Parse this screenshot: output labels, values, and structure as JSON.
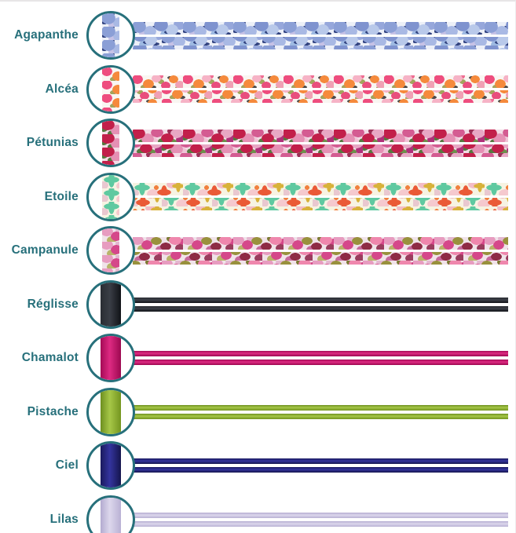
{
  "theme": {
    "accent": "#27707b",
    "page_bg": "#ffffff",
    "top_border": "#e7e5e6",
    "right_border": "#edecee"
  },
  "options": [
    {
      "name": "Agapanthe",
      "kind": "liberty",
      "pattern": {
        "bg": "#edf0f8",
        "tile": [
          64,
          17
        ],
        "blobs": [
          [
            "#8b9fd6",
            9,
            8,
            8,
            6
          ],
          [
            "#a9b9e4",
            8,
            7,
            22,
            12
          ],
          [
            "#7f93cf",
            9,
            8,
            36,
            4
          ],
          [
            "#b9c9ea",
            8,
            7,
            50,
            10
          ],
          [
            "#96a7db",
            8,
            7,
            60,
            3
          ],
          [
            "#c6c2e6",
            7,
            6,
            15,
            15
          ],
          [
            "#31427f",
            5,
            2,
            28,
            7
          ],
          [
            "#31427f",
            4,
            2,
            44,
            13
          ],
          [
            "#31427f",
            4,
            2,
            3,
            12
          ],
          [
            "#31427f",
            5,
            2,
            56,
            15
          ],
          [
            "#9db9e2",
            7,
            6,
            42,
            16
          ],
          [
            "#31427f",
            4,
            2,
            12,
            1
          ]
        ]
      }
    },
    {
      "name": "Alcéa",
      "kind": "liberty",
      "pattern": {
        "bg": "#f9f6f2",
        "tile": [
          64,
          17
        ],
        "blobs": [
          [
            "#ee4d7e",
            7,
            6,
            6,
            5
          ],
          [
            "#f58a3c",
            7,
            6,
            20,
            11
          ],
          [
            "#f6b3c6",
            6,
            5,
            30,
            4
          ],
          [
            "#e94e7d",
            6,
            5,
            42,
            13
          ],
          [
            "#f58a3c",
            6,
            5,
            52,
            5
          ],
          [
            "#f0a1b4",
            6,
            5,
            60,
            12
          ],
          [
            "#a3a45c",
            4,
            3,
            14,
            15
          ],
          [
            "#a3a45c",
            4,
            3,
            36,
            8
          ],
          [
            "#4a4a4a",
            4,
            2,
            26,
            15
          ],
          [
            "#4a4a4a",
            4,
            2,
            48,
            3
          ],
          [
            "#a3a45c",
            4,
            3,
            58,
            16
          ],
          [
            "#ee6d92",
            5,
            4,
            34,
            1
          ]
        ]
      }
    },
    {
      "name": "Pétunias",
      "kind": "liberty",
      "pattern": {
        "bg": "#f3dce6",
        "tile": [
          64,
          17
        ],
        "blobs": [
          [
            "#c21f4a",
            9,
            7,
            7,
            5
          ],
          [
            "#e590b4",
            8,
            7,
            19,
            12
          ],
          [
            "#d45c92",
            8,
            6,
            31,
            4
          ],
          [
            "#c21f4a",
            8,
            6,
            44,
            11
          ],
          [
            "#e8a7c4",
            8,
            6,
            56,
            5
          ],
          [
            "#55793f",
            6,
            4,
            13,
            16
          ],
          [
            "#55793f",
            6,
            4,
            38,
            15
          ],
          [
            "#6d8f4b",
            5,
            4,
            51,
            16
          ],
          [
            "#b0307a",
            7,
            6,
            62,
            13
          ],
          [
            "#f0c3d6",
            7,
            6,
            26,
            16
          ],
          [
            "#9c2f56",
            6,
            5,
            50,
            2
          ],
          [
            "#55793f",
            5,
            4,
            2,
            10
          ]
        ]
      }
    },
    {
      "name": "Etoile",
      "kind": "liberty",
      "pattern": {
        "bg": "#f7f3e2",
        "tile": [
          64,
          17
        ],
        "blobs": [
          [
            "#5fc9a0",
            10,
            4,
            12,
            6
          ],
          [
            "#5fc9a0",
            4,
            10,
            12,
            6
          ],
          [
            "#ea5a36",
            9,
            4,
            40,
            12
          ],
          [
            "#ea5a36",
            4,
            9,
            40,
            12
          ],
          [
            "#d8b23a",
            8,
            3,
            58,
            4
          ],
          [
            "#d8b23a",
            3,
            8,
            58,
            4
          ],
          [
            "#f5c9ce",
            8,
            6,
            26,
            14
          ],
          [
            "#f3bcc6",
            7,
            5,
            50,
            2
          ],
          [
            "#f0813f",
            3,
            3,
            30,
            6
          ],
          [
            "#e9c8d0",
            6,
            5,
            2,
            13
          ]
        ]
      }
    },
    {
      "name": "Campanule",
      "kind": "liberty",
      "pattern": {
        "bg": "#f0e3e9",
        "tile": [
          64,
          17
        ],
        "blobs": [
          [
            "#e79cc0",
            8,
            6,
            6,
            4
          ],
          [
            "#d5488a",
            7,
            6,
            18,
            10
          ],
          [
            "#99913d",
            7,
            5,
            30,
            5
          ],
          [
            "#8e2b45",
            7,
            5,
            42,
            12
          ],
          [
            "#ef87ad",
            8,
            6,
            54,
            4
          ],
          [
            "#b9b46a",
            6,
            5,
            12,
            15
          ],
          [
            "#c76a9b",
            7,
            5,
            36,
            16
          ],
          [
            "#9a3d5e",
            6,
            5,
            60,
            14
          ],
          [
            "#e3b7cf",
            7,
            6,
            24,
            2
          ],
          [
            "#7d7a33",
            5,
            4,
            48,
            2
          ],
          [
            "#d5488a",
            6,
            5,
            64,
            7
          ]
        ]
      }
    },
    {
      "name": "Réglisse",
      "kind": "cord",
      "cord": [
        "#2a2d33",
        "#3a3e46",
        "#101217"
      ]
    },
    {
      "name": "Chamalot",
      "kind": "cord",
      "cord": [
        "#a50a56",
        "#dd2a82",
        "#9c0850"
      ]
    },
    {
      "name": "Pistache",
      "kind": "cord",
      "cord": [
        "#6d8f1f",
        "#a6c747",
        "#74951f"
      ]
    },
    {
      "name": "Ciel",
      "kind": "cord",
      "cord": [
        "#1a1a5e",
        "#34349e",
        "#15154d"
      ]
    },
    {
      "name": "Lilas",
      "kind": "cord",
      "cord": [
        "#b3abd0",
        "#dcd7ec",
        "#b9b1d4"
      ]
    }
  ]
}
